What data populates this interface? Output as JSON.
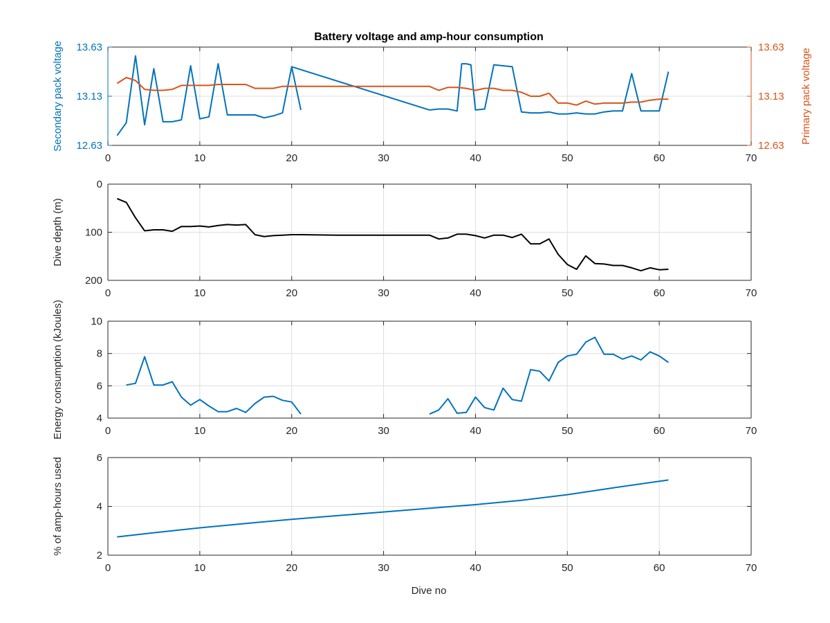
{
  "figure": {
    "title": "Battery voltage and amp-hour consumption",
    "xlabel": "Dive no"
  },
  "colors": {
    "blue": "#0072BD",
    "orange": "#D95319",
    "black": "#000000",
    "grid": "#DEDEDE",
    "axis": "#262626"
  },
  "chart_data": [
    {
      "type": "line",
      "id": "voltage",
      "title": "Battery voltage and amp-hour consumption",
      "xlabel": "",
      "ylabel": "Secondary pack voltage",
      "ylabel_right": "Primary pack voltage",
      "xlim": [
        0,
        70
      ],
      "ylim": [
        12.63,
        13.63
      ],
      "ylim_right": [
        12.63,
        13.63
      ],
      "xticks": [
        0,
        10,
        20,
        30,
        40,
        50,
        60,
        70
      ],
      "yticks": [
        12.63,
        13.13,
        13.63
      ],
      "yticks_right": [
        12.63,
        13.13,
        13.63
      ],
      "grid": true,
      "series": [
        {
          "color": "#0072BD",
          "axis": "left",
          "segments": [
            [
              [
                1,
                12.73
              ],
              [
                2,
                12.86
              ],
              [
                3,
                13.54
              ],
              [
                4,
                12.84
              ],
              [
                5,
                13.41
              ],
              [
                6,
                12.87
              ],
              [
                7,
                12.87
              ],
              [
                8,
                12.89
              ],
              [
                9,
                13.44
              ],
              [
                10,
                12.9
              ],
              [
                11,
                12.92
              ],
              [
                12,
                13.46
              ],
              [
                13,
                12.94
              ],
              [
                14,
                12.94
              ],
              [
                15,
                12.94
              ],
              [
                16,
                12.94
              ],
              [
                17,
                12.91
              ],
              [
                18,
                12.93
              ],
              [
                19,
                12.96
              ],
              [
                20,
                13.43
              ],
              [
                21,
                12.99
              ]
            ],
            [
              [
                35,
                12.99
              ],
              [
                36,
                13.0
              ],
              [
                37,
                13.0
              ],
              [
                38,
                12.98
              ],
              [
                38.5,
                13.46
              ],
              [
                39,
                13.46
              ],
              [
                39.5,
                13.45
              ],
              [
                40,
                12.99
              ],
              [
                41,
                13.0
              ],
              [
                42,
                13.45
              ],
              [
                43,
                13.44
              ],
              [
                44,
                13.43
              ],
              [
                45,
                12.97
              ],
              [
                46,
                12.96
              ],
              [
                47,
                12.96
              ],
              [
                48,
                12.97
              ],
              [
                49,
                12.95
              ],
              [
                50,
                12.95
              ],
              [
                51,
                12.96
              ],
              [
                52,
                12.95
              ],
              [
                53,
                12.95
              ],
              [
                54,
                12.97
              ],
              [
                55,
                12.98
              ],
              [
                56,
                12.98
              ],
              [
                57,
                13.36
              ],
              [
                58,
                12.98
              ],
              [
                59,
                12.98
              ],
              [
                60,
                12.98
              ],
              [
                61,
                13.38
              ]
            ]
          ],
          "connector": [
            [
              20,
              13.43
            ],
            [
              35,
              12.99
            ]
          ]
        },
        {
          "color": "#D95319",
          "axis": "right",
          "segments": [
            [
              [
                1,
                13.26
              ],
              [
                2,
                13.32
              ],
              [
                3,
                13.29
              ],
              [
                4,
                13.2
              ],
              [
                5,
                13.19
              ],
              [
                6,
                13.19
              ],
              [
                7,
                13.2
              ],
              [
                8,
                13.24
              ],
              [
                9,
                13.24
              ],
              [
                10,
                13.24
              ],
              [
                11,
                13.24
              ],
              [
                12,
                13.25
              ],
              [
                13,
                13.25
              ],
              [
                14,
                13.25
              ],
              [
                15,
                13.25
              ],
              [
                16,
                13.21
              ],
              [
                17,
                13.21
              ],
              [
                18,
                13.21
              ],
              [
                19,
                13.23
              ],
              [
                20,
                13.23
              ],
              [
                21,
                13.23
              ],
              [
                35,
                13.23
              ],
              [
                36,
                13.19
              ],
              [
                37,
                13.22
              ],
              [
                38,
                13.22
              ],
              [
                39,
                13.21
              ],
              [
                40,
                13.19
              ],
              [
                41,
                13.21
              ],
              [
                42,
                13.21
              ],
              [
                43,
                13.19
              ],
              [
                44,
                13.19
              ],
              [
                45,
                13.17
              ],
              [
                46,
                13.13
              ],
              [
                47,
                13.13
              ],
              [
                48,
                13.16
              ],
              [
                49,
                13.06
              ],
              [
                50,
                13.06
              ],
              [
                51,
                13.04
              ],
              [
                52,
                13.08
              ],
              [
                53,
                13.05
              ],
              [
                54,
                13.06
              ],
              [
                55,
                13.06
              ],
              [
                56,
                13.06
              ],
              [
                57,
                13.07
              ],
              [
                58,
                13.07
              ],
              [
                59,
                13.09
              ],
              [
                60,
                13.1
              ],
              [
                61,
                13.1
              ]
            ]
          ]
        }
      ]
    },
    {
      "type": "line",
      "id": "depth",
      "xlabel": "",
      "ylabel": "Dive depth (m)",
      "xlim": [
        0,
        70
      ],
      "ylim": [
        0,
        200
      ],
      "y_reversed": true,
      "xticks": [
        0,
        10,
        20,
        30,
        40,
        50,
        60,
        70
      ],
      "yticks": [
        0,
        100,
        200
      ],
      "grid": true,
      "series": [
        {
          "color": "#000000",
          "segments": [
            [
              [
                1,
                30
              ],
              [
                2,
                38
              ],
              [
                3,
                70
              ],
              [
                4,
                97
              ],
              [
                5,
                95
              ],
              [
                6,
                95
              ],
              [
                7,
                98
              ],
              [
                8,
                88
              ],
              [
                9,
                88
              ],
              [
                10,
                87
              ],
              [
                11,
                89
              ],
              [
                12,
                86
              ],
              [
                13,
                84
              ],
              [
                14,
                85
              ],
              [
                15,
                84
              ],
              [
                16,
                105
              ],
              [
                17,
                109
              ],
              [
                18,
                107
              ],
              [
                19,
                106
              ],
              [
                20,
                105
              ],
              [
                21,
                105
              ],
              [
                25,
                106
              ],
              [
                30,
                106
              ],
              [
                35,
                106
              ],
              [
                36,
                114
              ],
              [
                37,
                112
              ],
              [
                38,
                104
              ],
              [
                39,
                104
              ],
              [
                40,
                107
              ],
              [
                41,
                112
              ],
              [
                42,
                106
              ],
              [
                43,
                106
              ],
              [
                44,
                111
              ],
              [
                45,
                104
              ],
              [
                46,
                124
              ],
              [
                47,
                124
              ],
              [
                48,
                114
              ],
              [
                49,
                146
              ],
              [
                50,
                167
              ],
              [
                51,
                177
              ],
              [
                52,
                149
              ],
              [
                53,
                165
              ],
              [
                54,
                166
              ],
              [
                55,
                169
              ],
              [
                56,
                169
              ],
              [
                57,
                174
              ],
              [
                58,
                180
              ],
              [
                59,
                174
              ],
              [
                60,
                178
              ],
              [
                61,
                177
              ]
            ]
          ]
        }
      ]
    },
    {
      "type": "line",
      "id": "energy",
      "xlabel": "",
      "ylabel": "Energy consumption (kJoules)",
      "xlim": [
        0,
        70
      ],
      "ylim": [
        4,
        10
      ],
      "xticks": [
        0,
        10,
        20,
        30,
        40,
        50,
        60,
        70
      ],
      "yticks": [
        4,
        6,
        8,
        10
      ],
      "grid": true,
      "series": [
        {
          "color": "#0072BD",
          "segments": [
            [
              [
                2,
                6.05
              ],
              [
                3,
                6.15
              ],
              [
                4,
                7.8
              ],
              [
                5,
                6.05
              ],
              [
                6,
                6.05
              ],
              [
                7,
                6.25
              ],
              [
                8,
                5.3
              ],
              [
                9,
                4.8
              ],
              [
                10,
                5.15
              ],
              [
                11,
                4.75
              ],
              [
                12,
                4.4
              ],
              [
                13,
                4.4
              ],
              [
                14,
                4.6
              ],
              [
                15,
                4.35
              ],
              [
                16,
                4.9
              ],
              [
                17,
                5.3
              ],
              [
                18,
                5.35
              ],
              [
                19,
                5.1
              ],
              [
                20,
                5.0
              ],
              [
                21,
                4.25
              ]
            ],
            [
              [
                35,
                4.25
              ],
              [
                36,
                4.5
              ],
              [
                37,
                5.2
              ],
              [
                38,
                4.3
              ],
              [
                39,
                4.35
              ],
              [
                40,
                5.3
              ],
              [
                41,
                4.65
              ],
              [
                42,
                4.5
              ],
              [
                43,
                5.85
              ],
              [
                44,
                5.15
              ],
              [
                45,
                5.05
              ],
              [
                46,
                7.0
              ],
              [
                47,
                6.9
              ],
              [
                48,
                6.3
              ],
              [
                49,
                7.45
              ],
              [
                50,
                7.85
              ],
              [
                51,
                7.95
              ],
              [
                52,
                8.7
              ],
              [
                53,
                9.0
              ],
              [
                54,
                7.95
              ],
              [
                55,
                7.95
              ],
              [
                56,
                7.65
              ],
              [
                57,
                7.85
              ],
              [
                58,
                7.6
              ],
              [
                59,
                8.1
              ],
              [
                60,
                7.85
              ],
              [
                61,
                7.45
              ]
            ]
          ]
        }
      ]
    },
    {
      "type": "line",
      "id": "amphours",
      "xlabel": "Dive no",
      "ylabel": "% of amp-hours used",
      "xlim": [
        0,
        70
      ],
      "ylim": [
        2,
        6
      ],
      "xticks": [
        0,
        10,
        20,
        30,
        40,
        50,
        60,
        70
      ],
      "yticks": [
        2,
        4,
        6
      ],
      "grid": true,
      "series": [
        {
          "color": "#0072BD",
          "segments": [
            [
              [
                1,
                2.75
              ],
              [
                5,
                2.92
              ],
              [
                10,
                3.12
              ],
              [
                15,
                3.3
              ],
              [
                20,
                3.47
              ],
              [
                25,
                3.62
              ],
              [
                30,
                3.77
              ],
              [
                35,
                3.92
              ],
              [
                40,
                4.07
              ],
              [
                45,
                4.25
              ],
              [
                50,
                4.48
              ],
              [
                55,
                4.76
              ],
              [
                61,
                5.08
              ]
            ]
          ]
        }
      ]
    }
  ]
}
